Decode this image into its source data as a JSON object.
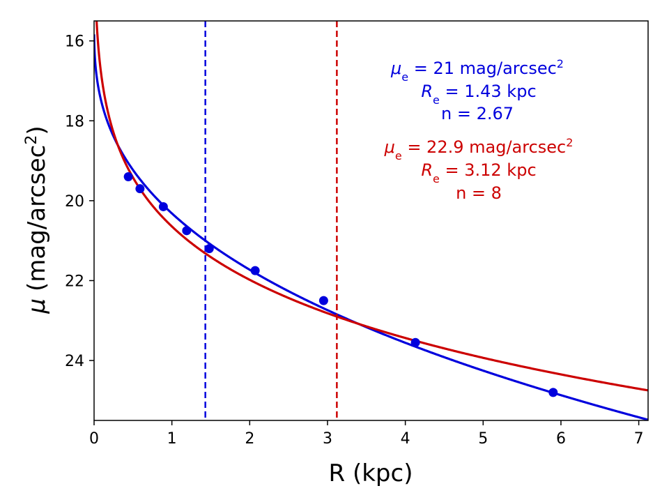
{
  "chart_data": {
    "type": "scatter",
    "xlabel": "R (kpc)",
    "ylabel_symbol": "μ",
    "ylabel_text": "(mag/arcsec",
    "ylabel_sup": "2",
    "ylabel_close": ")",
    "xlim": [
      0,
      7.12
    ],
    "ylim": [
      25.5,
      15.5
    ],
    "y_inverted": true,
    "x_ticks": [
      0,
      1,
      2,
      3,
      4,
      5,
      6,
      7
    ],
    "x_tick_labels": [
      "0",
      "1",
      "2",
      "3",
      "4",
      "5",
      "6",
      "7"
    ],
    "y_ticks": [
      16,
      18,
      20,
      22,
      24
    ],
    "y_tick_labels": [
      "16",
      "18",
      "20",
      "22",
      "24"
    ],
    "points": {
      "color": "#0000dd",
      "x": [
        0.44,
        0.59,
        0.89,
        1.19,
        1.48,
        2.07,
        2.95,
        4.13,
        5.9
      ],
      "y": [
        19.4,
        19.7,
        20.15,
        20.75,
        21.2,
        21.75,
        22.5,
        23.55,
        24.8
      ]
    },
    "series": [
      {
        "name": "blue-sersic",
        "color": "#0000dd",
        "mu_e": 21,
        "r_e": 1.43,
        "n": 2.67,
        "label_mu": "μ",
        "label_mu_sub": "e",
        "label_mu_rest": " = 21 mag/arcsec",
        "label_mu_sup": "2",
        "label_r": "R",
        "label_r_sub": "e",
        "label_r_rest": " = 1.43 kpc",
        "label_n": "n = 2.67"
      },
      {
        "name": "red-sersic",
        "color": "#cc0000",
        "mu_e": 22.9,
        "r_e": 3.12,
        "n": 8,
        "label_mu": "μ",
        "label_mu_sub": "e",
        "label_mu_rest": " = 22.9 mag/arcsec",
        "label_mu_sup": "2",
        "label_r": "R",
        "label_r_sub": "e",
        "label_r_rest": " = 3.12 kpc",
        "label_n": "n = 8"
      }
    ],
    "vlines": [
      {
        "x": 1.43,
        "color": "#0000dd",
        "style": "dashed"
      },
      {
        "x": 3.12,
        "color": "#cc0000",
        "style": "dashed"
      }
    ]
  }
}
